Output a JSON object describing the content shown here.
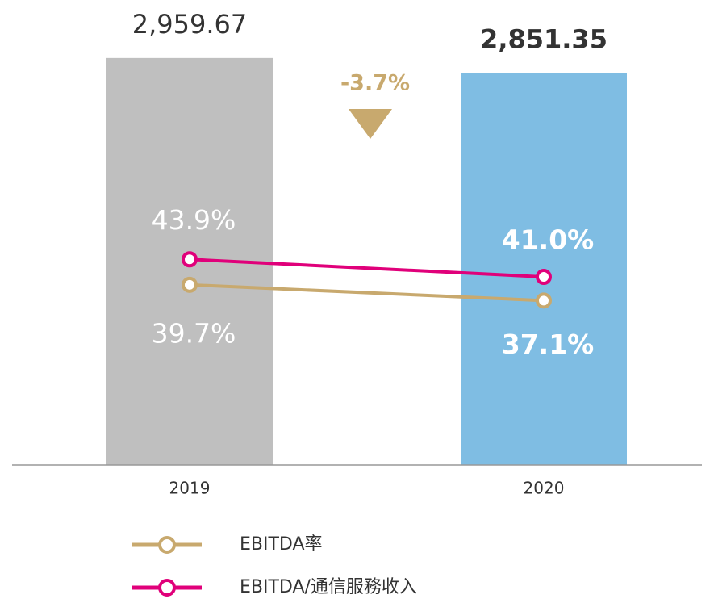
{
  "chart_data": {
    "type": "bar",
    "categories": [
      "2019",
      "2020"
    ],
    "values": [
      2959.67,
      2851.35
    ],
    "value_labels": [
      "2,959.67",
      "2,851.35"
    ],
    "colors": [
      "#bfbfbf",
      "#7fbde3"
    ],
    "ylim": [
      0,
      3000
    ],
    "annotation": "-3.7%",
    "annotation_color": "#c8a96e",
    "lines": [
      {
        "name": "EBITDA率",
        "color": "#c8a96e",
        "axis": "y2",
        "values": [
          39.7,
          37.1
        ],
        "value_labels": [
          "39.7%",
          "37.1%"
        ]
      },
      {
        "name": "EBITDA/通信服務收入",
        "color": "#e0007a",
        "axis": "y2",
        "values": [
          43.9,
          41.0
        ],
        "value_labels": [
          "43.9%",
          "41.0%"
        ]
      }
    ],
    "y2lim": [
      10,
      78
    ]
  }
}
